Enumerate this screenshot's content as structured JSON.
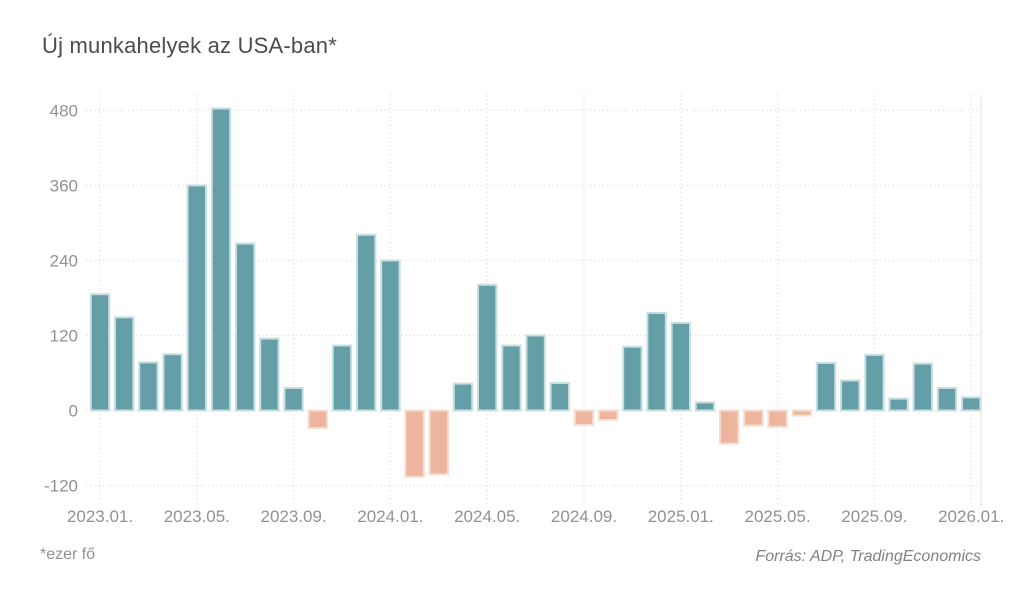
{
  "page": {
    "title": "Új munkahelyek az USA-ban*",
    "footnote": "*ezer fő",
    "source": "Forrás: ADP, TradingEconomics"
  },
  "colors": {
    "background": "#ffffff",
    "positive_bar": "#649fa8",
    "positive_bar_edge": "#c9dee1",
    "negative_bar": "#edb49e",
    "negative_bar_edge": "#f6ddd0",
    "grid": "#e3e3e3",
    "plot_right_edge": "#ececec",
    "axis_text": "#909295",
    "title_text": "#4b4c4e",
    "source_text": "#7f8285"
  },
  "chart_data": {
    "type": "bar",
    "title": "Új munkahelyek az USA-ban*",
    "unit": "ezer fő (thousand persons)",
    "grid": "dotted",
    "legend": false,
    "ylim": [
      -150,
      505
    ],
    "y_ticks": [
      480,
      360,
      240,
      120,
      0,
      -120
    ],
    "x_tick_labels": [
      "2023.01.",
      "2023.05.",
      "2023.09.",
      "2024.01.",
      "2024.05.",
      "2024.09.",
      "2025.01.",
      "2025.05.",
      "2025.09.",
      "2026.01."
    ],
    "x_tick_every_n_months": 4,
    "x": [
      "2023.01",
      "2023.02",
      "2023.03",
      "2023.04",
      "2023.05",
      "2023.06",
      "2023.07",
      "2023.08",
      "2023.09",
      "2023.10",
      "2023.11",
      "2023.12",
      "2024.01",
      "2024.02",
      "2024.03",
      "2024.04",
      "2024.05",
      "2024.06",
      "2024.07",
      "2024.08",
      "2024.09",
      "2024.10",
      "2024.11",
      "2024.12",
      "2025.01",
      "2025.02",
      "2025.03",
      "2025.04",
      "2025.05",
      "2025.06",
      "2025.07",
      "2025.08",
      "2025.09",
      "2025.10",
      "2025.11",
      "2025.12",
      "2026.01"
    ],
    "values": [
      186,
      149,
      77,
      90,
      360,
      483,
      267,
      115,
      36,
      -28,
      104,
      281,
      240,
      -106,
      -102,
      43,
      201,
      104,
      120,
      44,
      -23,
      -15,
      102,
      156,
      140,
      13,
      -53,
      -24,
      -26,
      -8,
      76,
      48,
      89,
      19,
      75,
      36,
      21
    ]
  }
}
